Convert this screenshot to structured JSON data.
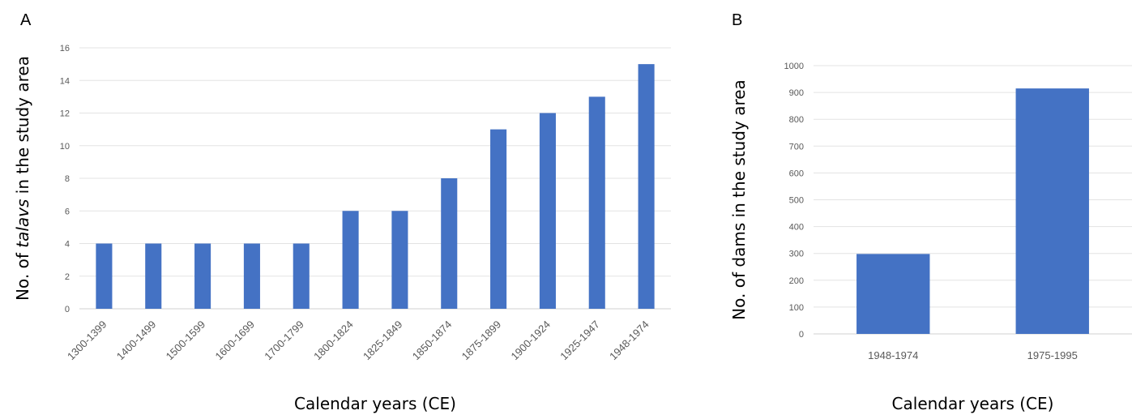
{
  "panels": {
    "a": {
      "letter": "A"
    },
    "b": {
      "letter": "B"
    }
  },
  "chart_data": [
    {
      "type": "bar",
      "panel": "A",
      "categories": [
        "1300-1399",
        "1400-1499",
        "1500-1599",
        "1600-1699",
        "1700-1799",
        "1800-1824",
        "1825-1849",
        "1850-1874",
        "1875-1899",
        "1900-1924",
        "1925-1947",
        "1948-1974"
      ],
      "values": [
        4,
        4,
        4,
        4,
        4,
        6,
        6,
        8,
        11,
        12,
        13,
        15
      ],
      "xlabel": "Calendar years (CE)",
      "ylabel_parts": [
        "No. of ",
        "talavs",
        " in the study area"
      ],
      "ylim": [
        0,
        16
      ],
      "yticks": [
        0,
        2,
        4,
        6,
        8,
        10,
        12,
        14,
        16
      ],
      "grid": true,
      "bar_color": "#4472C4"
    },
    {
      "type": "bar",
      "panel": "B",
      "categories": [
        "1948-1974",
        "1975-1995"
      ],
      "values": [
        298,
        915
      ],
      "xlabel": "Calendar years (CE)",
      "ylabel": "No. of dams in the study area",
      "ylim": [
        0,
        1000
      ],
      "yticks": [
        0,
        100,
        200,
        300,
        400,
        500,
        600,
        700,
        800,
        900,
        1000
      ],
      "grid": true,
      "bar_color": "#4472C4"
    }
  ]
}
